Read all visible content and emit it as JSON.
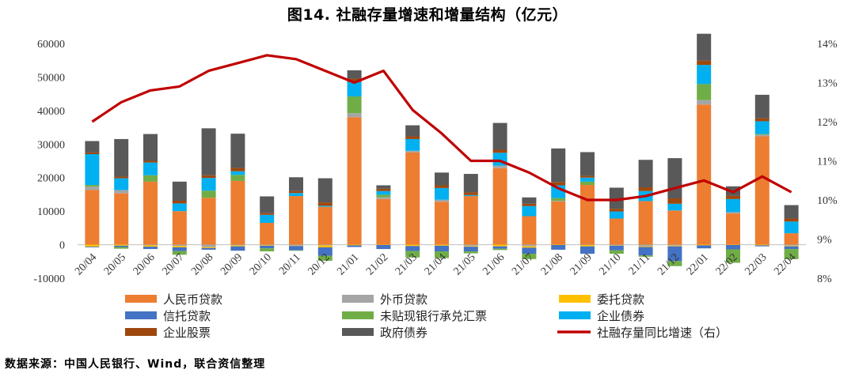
{
  "page": {
    "source_note": "数据来源：中国人民银行、Wind，联合资信整理"
  },
  "chart_data": {
    "type": "bar",
    "stacked": true,
    "title": "图14. 社融存量增速和增量结构（亿元）",
    "categories": [
      "20/04",
      "20/05",
      "20/06",
      "20/07",
      "20/08",
      "20/09",
      "20/10",
      "20/11",
      "20/12",
      "21/01",
      "21/02",
      "21/03",
      "21/04",
      "21/05",
      "21/06",
      "21/07",
      "21/08",
      "21/09",
      "21/10",
      "21/11",
      "21/12",
      "22/01",
      "22/02",
      "22/03",
      "22/04"
    ],
    "y_left": {
      "min": -10000,
      "max": 60000,
      "step": 10000,
      "ticks": [
        "-10000",
        "0",
        "10000",
        "20000",
        "30000",
        "40000",
        "50000",
        "60000"
      ]
    },
    "y_right": {
      "min": 8,
      "max": 14,
      "step": 1,
      "ticks": [
        "8%",
        "9%",
        "10%",
        "11%",
        "12%",
        "13%",
        "14%"
      ]
    },
    "series": [
      {
        "name": "人民币贷款",
        "color": "#ED7D31",
        "values": [
          16300,
          15300,
          18800,
          10000,
          14000,
          19000,
          6500,
          14500,
          11300,
          38000,
          13600,
          27500,
          12800,
          14500,
          22800,
          8500,
          12900,
          17800,
          7800,
          13000,
          10200,
          41800,
          9300,
          32300,
          3400
        ]
      },
      {
        "name": "外币贷款",
        "color": "#A5A5A5",
        "values": [
          1000,
          1000,
          -200,
          -400,
          -700,
          -200,
          -100,
          -300,
          -200,
          1200,
          500,
          500,
          600,
          -400,
          800,
          -500,
          200,
          -100,
          -200,
          -500,
          -300,
          1300,
          400,
          500,
          -300
        ]
      },
      {
        "name": "委托贷款",
        "color": "#FFC000",
        "values": [
          -600,
          -300,
          -400,
          -400,
          -300,
          -300,
          -200,
          -100,
          -600,
          -200,
          -100,
          -400,
          -300,
          -200,
          -500,
          -400,
          -100,
          -400,
          -100,
          -200,
          -200,
          -200,
          -100,
          -200,
          -200
        ]
      },
      {
        "name": "信托贷款",
        "color": "#4472C4",
        "values": [
          -200,
          -400,
          -700,
          -1100,
          -500,
          -1300,
          -800,
          -1300,
          -2500,
          -500,
          -1200,
          -1500,
          -1700,
          -1400,
          -700,
          -1800,
          -1400,
          -2200,
          -1400,
          -2500,
          -4400,
          -900,
          -1300,
          -300,
          -800
        ]
      },
      {
        "name": "未贴现银行承兑汇票",
        "color": "#70AD47",
        "values": [
          500,
          -500,
          1900,
          -1100,
          2100,
          1800,
          -900,
          -100,
          -1500,
          5000,
          800,
          -1900,
          -2000,
          -600,
          -400,
          -1600,
          800,
          1000,
          -1000,
          -400,
          -1500,
          4800,
          -4000,
          200,
          -3000
        ]
      },
      {
        "name": "企业债券",
        "color": "#00B0F0",
        "values": [
          9200,
          3500,
          3800,
          2300,
          3800,
          1100,
          2400,
          900,
          300,
          4300,
          1100,
          3500,
          3500,
          300,
          3800,
          3000,
          3800,
          1200,
          2100,
          3000,
          2000,
          5700,
          3900,
          3800,
          3500
        ]
      },
      {
        "name": "企业股票",
        "color": "#9E480E",
        "values": [
          500,
          500,
          500,
          800,
          800,
          1000,
          500,
          600,
          1000,
          1000,
          700,
          800,
          800,
          800,
          900,
          700,
          1000,
          500,
          800,
          1100,
          1600,
          1300,
          1000,
          900,
          900
        ]
      },
      {
        "name": "政府债券",
        "color": "#595959",
        "values": [
          3400,
          11200,
          8000,
          5700,
          14000,
          10200,
          5000,
          4100,
          7200,
          2500,
          1000,
          3300,
          3800,
          5500,
          8000,
          1900,
          10000,
          7100,
          6300,
          8200,
          12000,
          8000,
          2800,
          7000,
          4000
        ]
      },
      {
        "name": "社融存量同比增速（右）",
        "type": "line",
        "axis": "right",
        "color": "#C00000",
        "values": [
          12.0,
          12.5,
          12.8,
          12.9,
          13.3,
          13.5,
          13.7,
          13.6,
          13.3,
          13.0,
          13.3,
          12.3,
          11.7,
          11.0,
          11.0,
          10.7,
          10.3,
          10.0,
          10.0,
          10.1,
          10.3,
          10.5,
          10.2,
          10.6,
          10.2
        ]
      }
    ],
    "legend": {
      "position": "bottom"
    },
    "grid": false
  }
}
